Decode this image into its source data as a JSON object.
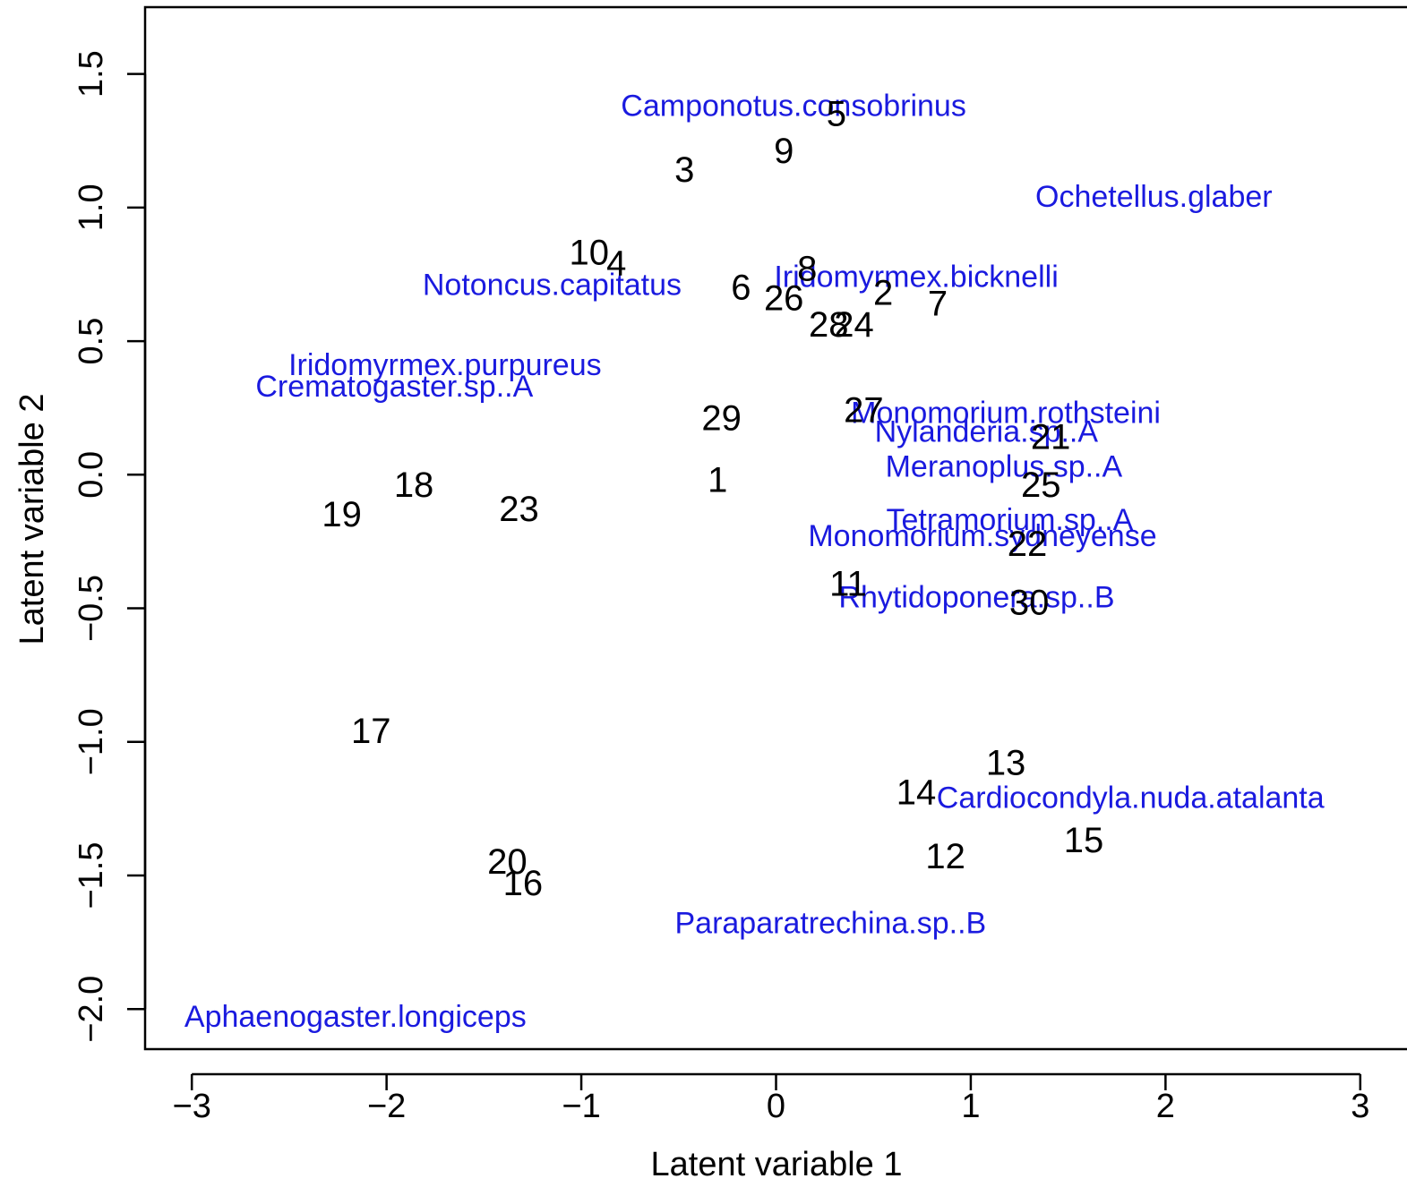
{
  "chart_data": {
    "type": "scatter",
    "title": "",
    "xlabel": "Latent variable  1",
    "ylabel": "Latent variable  2",
    "xlim": [
      -3.24,
      3.24
    ],
    "ylim": [
      -2.15,
      1.75
    ],
    "x_ticks": [
      -3,
      -2,
      -1,
      0,
      1,
      2,
      3
    ],
    "y_ticks": [
      -2.0,
      -1.5,
      -1.0,
      -0.5,
      0.0,
      0.5,
      1.0,
      1.5
    ],
    "x_tick_labels": [
      "−3",
      "−2",
      "−1",
      "0",
      "1",
      "2",
      "3"
    ],
    "y_tick_labels": [
      "−2.0",
      "−1.5",
      "−1.0",
      "−0.5",
      "0.0",
      "0.5",
      "1.0",
      "1.5"
    ],
    "grid": false,
    "legend": "none",
    "colors": {
      "sites": "#000000",
      "species": "#1a1adf",
      "axes": "#000000"
    },
    "sites": [
      {
        "label": "1",
        "x": -0.3,
        "y": -0.02
      },
      {
        "label": "2",
        "x": 0.55,
        "y": 0.68
      },
      {
        "label": "3",
        "x": -0.47,
        "y": 1.14
      },
      {
        "label": "4",
        "x": -0.82,
        "y": 0.79
      },
      {
        "label": "5",
        "x": 0.31,
        "y": 1.35
      },
      {
        "label": "6",
        "x": -0.18,
        "y": 0.7
      },
      {
        "label": "7",
        "x": 0.83,
        "y": 0.64
      },
      {
        "label": "8",
        "x": 0.16,
        "y": 0.77
      },
      {
        "label": "9",
        "x": 0.04,
        "y": 1.21
      },
      {
        "label": "10",
        "x": -0.96,
        "y": 0.83
      },
      {
        "label": "11",
        "x": 0.37,
        "y": -0.41
      },
      {
        "label": "12",
        "x": 0.87,
        "y": -1.43
      },
      {
        "label": "13",
        "x": 1.18,
        "y": -1.08
      },
      {
        "label": "14",
        "x": 0.72,
        "y": -1.19
      },
      {
        "label": "15",
        "x": 1.58,
        "y": -1.37
      },
      {
        "label": "16",
        "x": -1.3,
        "y": -1.53
      },
      {
        "label": "17",
        "x": -2.08,
        "y": -0.96
      },
      {
        "label": "18",
        "x": -1.86,
        "y": -0.04
      },
      {
        "label": "19",
        "x": -2.23,
        "y": -0.15
      },
      {
        "label": "20",
        "x": -1.38,
        "y": -1.45
      },
      {
        "label": "21",
        "x": 1.41,
        "y": 0.14
      },
      {
        "label": "22",
        "x": 1.29,
        "y": -0.26
      },
      {
        "label": "23",
        "x": -1.32,
        "y": -0.13
      },
      {
        "label": "24",
        "x": 0.4,
        "y": 0.56
      },
      {
        "label": "25",
        "x": 1.36,
        "y": -0.04
      },
      {
        "label": "26",
        "x": 0.04,
        "y": 0.66
      },
      {
        "label": "27",
        "x": 0.45,
        "y": 0.24
      },
      {
        "label": "28",
        "x": 0.27,
        "y": 0.56
      },
      {
        "label": "29",
        "x": -0.28,
        "y": 0.21
      },
      {
        "label": "30",
        "x": 1.3,
        "y": -0.48
      }
    ],
    "species": [
      {
        "label": "Camponotus.consobrinus",
        "x": 0.09,
        "y": 1.38
      },
      {
        "label": "Ochetellus.glaber",
        "x": 1.94,
        "y": 1.04
      },
      {
        "label": "Notoncus.capitatus",
        "x": -1.15,
        "y": 0.71
      },
      {
        "label": "Iridomyrmex.bicknelli",
        "x": 0.72,
        "y": 0.74
      },
      {
        "label": "Iridomyrmex.purpureus",
        "x": -1.7,
        "y": 0.41
      },
      {
        "label": "Crematogaster.sp..A",
        "x": -1.96,
        "y": 0.33
      },
      {
        "label": "Monomorium.rothsteini",
        "x": 1.18,
        "y": 0.23
      },
      {
        "label": "Nylanderia.sp..A",
        "x": 1.08,
        "y": 0.16
      },
      {
        "label": "Meranoplus.sp..A",
        "x": 1.17,
        "y": 0.03
      },
      {
        "label": "Tetramorium.sp..A",
        "x": 1.2,
        "y": -0.17
      },
      {
        "label": "Monomorium.sydneyense",
        "x": 1.06,
        "y": -0.23
      },
      {
        "label": "Rhytidoponera.sp..B",
        "x": 1.03,
        "y": -0.46
      },
      {
        "label": "Cardiocondyla.nuda.atalanta",
        "x": 1.82,
        "y": -1.21
      },
      {
        "label": "Paraparatrechina.sp..B",
        "x": 0.28,
        "y": -1.68
      },
      {
        "label": "Aphaenogaster.longiceps",
        "x": -2.16,
        "y": -2.03
      }
    ]
  }
}
